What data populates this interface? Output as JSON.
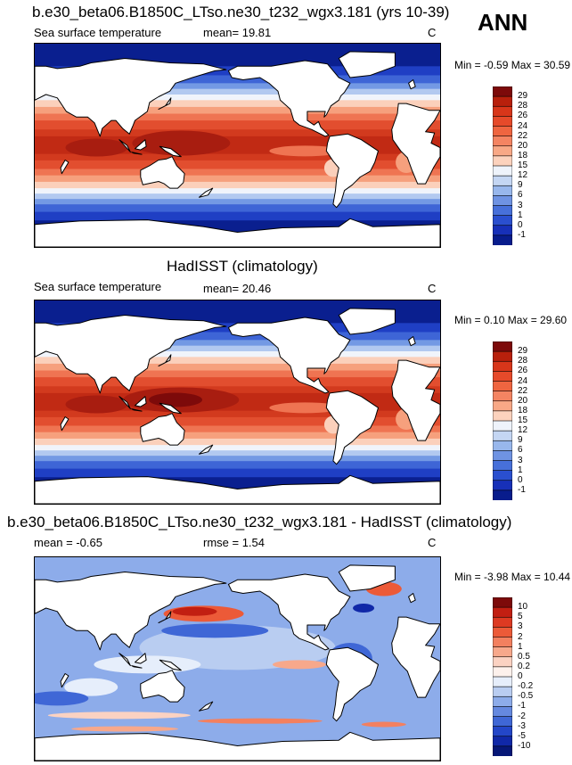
{
  "season": "ANN",
  "panels": [
    {
      "title": "b.e30_beta06.B1850C_LTso.ne30_t232_wgx3.181 (yrs 10-39)",
      "variable": "Sea surface temperature",
      "stat1": "mean=  19.81",
      "stat2": "",
      "units": "C",
      "minmax": "Min = -0.59 Max =  30.59",
      "colorbar_labels": [
        "29",
        "28",
        "26",
        "24",
        "22",
        "20",
        "18",
        "15",
        "12",
        "9",
        "6",
        "3",
        "1",
        "0",
        "-1"
      ],
      "colorbar_colors": [
        "#7d0a0a",
        "#b8200c",
        "#d8361a",
        "#e64a2a",
        "#ef6540",
        "#f48462",
        "#f8a886",
        "#fcd2bd",
        "#eef3fb",
        "#c4d6f3",
        "#98b7ec",
        "#6f93e3",
        "#4770da",
        "#2a4fcf",
        "#1730b8",
        "#081c8c"
      ],
      "kind": "model"
    },
    {
      "title": "HadISST (climatology)",
      "variable": "Sea surface temperature",
      "stat1": "mean=  20.46",
      "stat2": "",
      "units": "C",
      "minmax": "Min =  0.10 Max =  29.60",
      "colorbar_labels": [
        "29",
        "28",
        "26",
        "24",
        "22",
        "20",
        "18",
        "15",
        "12",
        "9",
        "6",
        "3",
        "1",
        "0",
        "-1"
      ],
      "colorbar_colors": [
        "#7d0a0a",
        "#b8200c",
        "#d8361a",
        "#e64a2a",
        "#ef6540",
        "#f48462",
        "#f8a886",
        "#fcd2bd",
        "#eef3fb",
        "#c4d6f3",
        "#98b7ec",
        "#6f93e3",
        "#4770da",
        "#2a4fcf",
        "#1730b8",
        "#081c8c"
      ],
      "kind": "obs"
    },
    {
      "title": "b.e30_beta06.B1850C_LTso.ne30_t232_wgx3.181 - HadISST (climatology)",
      "variable": "",
      "stat1": "mean =  -0.65",
      "stat2": "rmse =   1.54",
      "units": "C",
      "minmax": "Min = -3.98 Max =  10.44",
      "colorbar_labels": [
        "10",
        "5",
        "3",
        "2",
        "1",
        "0.5",
        "0.2",
        "0",
        "-0.2",
        "-0.5",
        "-1",
        "-2",
        "-3",
        "-5",
        "-10"
      ],
      "colorbar_colors": [
        "#7d0a0a",
        "#c21f12",
        "#dd3a22",
        "#ec5a38",
        "#f3805f",
        "#f7a88b",
        "#fbd2c2",
        "#fdf1ec",
        "#e6eefb",
        "#b9cdf1",
        "#8dacea",
        "#6589e0",
        "#3f67d6",
        "#2346c8",
        "#1028a8",
        "#061777"
      ],
      "kind": "diff"
    }
  ]
}
